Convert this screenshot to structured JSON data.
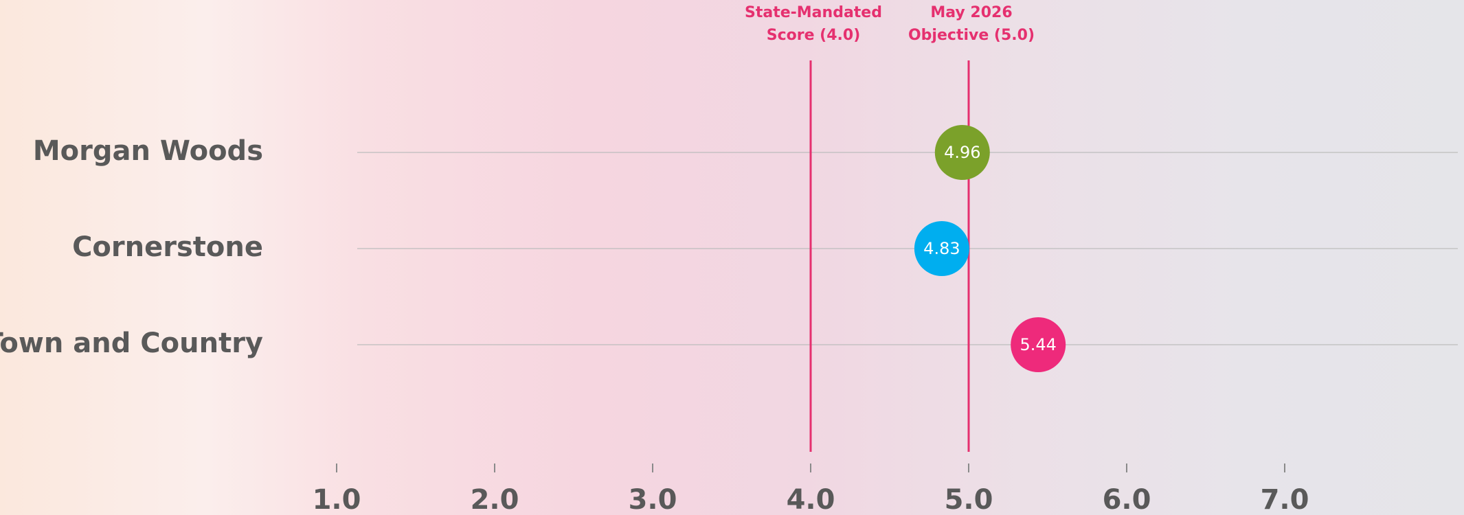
{
  "chart_data": {
    "type": "dot",
    "categories": [
      "Morgan Woods",
      "Cornerstone",
      "Town and Country"
    ],
    "series": [
      {
        "values": [
          4.96,
          4.83,
          5.44
        ],
        "colors": [
          "#7ba12a",
          "#00aeef",
          "#ee2a7b"
        ]
      }
    ],
    "xlim": [
      1,
      8
    ],
    "xticks": [
      {
        "value": 1,
        "label": "1.0"
      },
      {
        "value": 2,
        "label": "2.0"
      },
      {
        "value": 3,
        "label": "3.0"
      },
      {
        "value": 4,
        "label": "4.0"
      },
      {
        "value": 5,
        "label": "5.0"
      },
      {
        "value": 6,
        "label": "6.0"
      },
      {
        "value": 7,
        "label": "7.0"
      }
    ],
    "reference_lines": [
      {
        "value": 4,
        "label_lines": [
          "State-Mandated",
          "Score (4.0)"
        ],
        "color": "#e5306f"
      },
      {
        "value": 5,
        "label_lines": [
          "May 2026",
          "Objective (5.0)"
        ],
        "color": "#e5306f"
      }
    ]
  }
}
